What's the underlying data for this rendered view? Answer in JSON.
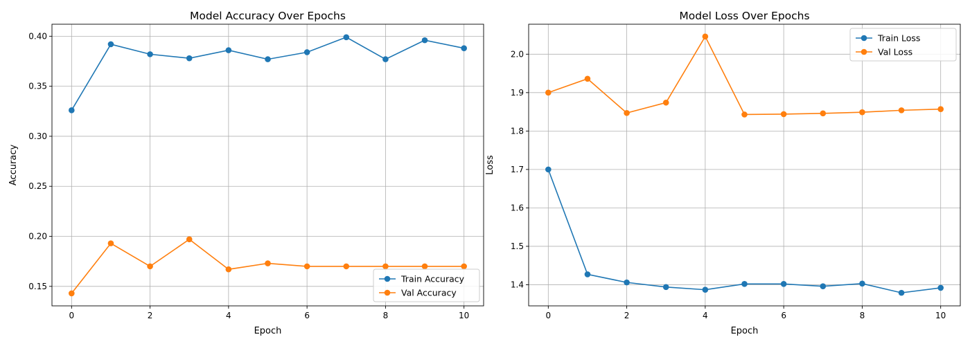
{
  "colors": {
    "train": "#1f77b4",
    "val": "#ff7f0e",
    "grid": "#b0b0b0"
  },
  "chart_data": [
    {
      "type": "line",
      "title": "Model Accuracy Over Epochs",
      "xlabel": "Epoch",
      "ylabel": "Accuracy",
      "x": [
        0,
        1,
        2,
        3,
        4,
        5,
        6,
        7,
        8,
        9,
        10
      ],
      "xlim": [
        -0.5,
        10.5
      ],
      "ylim": [
        0.1305,
        0.412
      ],
      "xticks": [
        0,
        2,
        4,
        6,
        8,
        10
      ],
      "xtick_labels": [
        "0",
        "2",
        "4",
        "6",
        "8",
        "10"
      ],
      "yticks": [
        0.15,
        0.2,
        0.25,
        0.3,
        0.35,
        0.4
      ],
      "ytick_labels": [
        "0.15",
        "0.20",
        "0.25",
        "0.30",
        "0.35",
        "0.40"
      ],
      "grid": true,
      "legend_position": "lower-right",
      "series": [
        {
          "name": "Train Accuracy",
          "color_key": "train",
          "values": [
            0.326,
            0.392,
            0.382,
            0.378,
            0.386,
            0.377,
            0.384,
            0.399,
            0.377,
            0.396,
            0.388
          ]
        },
        {
          "name": "Val Accuracy",
          "color_key": "val",
          "values": [
            0.143,
            0.193,
            0.17,
            0.197,
            0.167,
            0.173,
            0.17,
            0.17,
            0.17,
            0.17,
            0.17
          ]
        }
      ]
    },
    {
      "type": "line",
      "title": "Model Loss Over Epochs",
      "xlabel": "Epoch",
      "ylabel": "Loss",
      "x": [
        0,
        1,
        2,
        3,
        4,
        5,
        6,
        7,
        8,
        9,
        10
      ],
      "xlim": [
        -0.5,
        10.5
      ],
      "ylim": [
        1.345,
        2.078
      ],
      "xticks": [
        0,
        2,
        4,
        6,
        8,
        10
      ],
      "xtick_labels": [
        "0",
        "2",
        "4",
        "6",
        "8",
        "10"
      ],
      "yticks": [
        1.4,
        1.5,
        1.6,
        1.7,
        1.8,
        1.9,
        2.0
      ],
      "ytick_labels": [
        "1.4",
        "1.5",
        "1.6",
        "1.7",
        "1.8",
        "1.9",
        "2.0"
      ],
      "grid": true,
      "legend_position": "upper-right",
      "series": [
        {
          "name": "Train Loss",
          "color_key": "train",
          "values": [
            1.7,
            1.427,
            1.406,
            1.394,
            1.387,
            1.402,
            1.402,
            1.396,
            1.403,
            1.379,
            1.392
          ]
        },
        {
          "name": "Val Loss",
          "color_key": "val",
          "values": [
            1.9,
            1.936,
            1.847,
            1.874,
            2.046,
            1.843,
            1.844,
            1.846,
            1.849,
            1.854,
            1.857
          ]
        }
      ]
    }
  ]
}
